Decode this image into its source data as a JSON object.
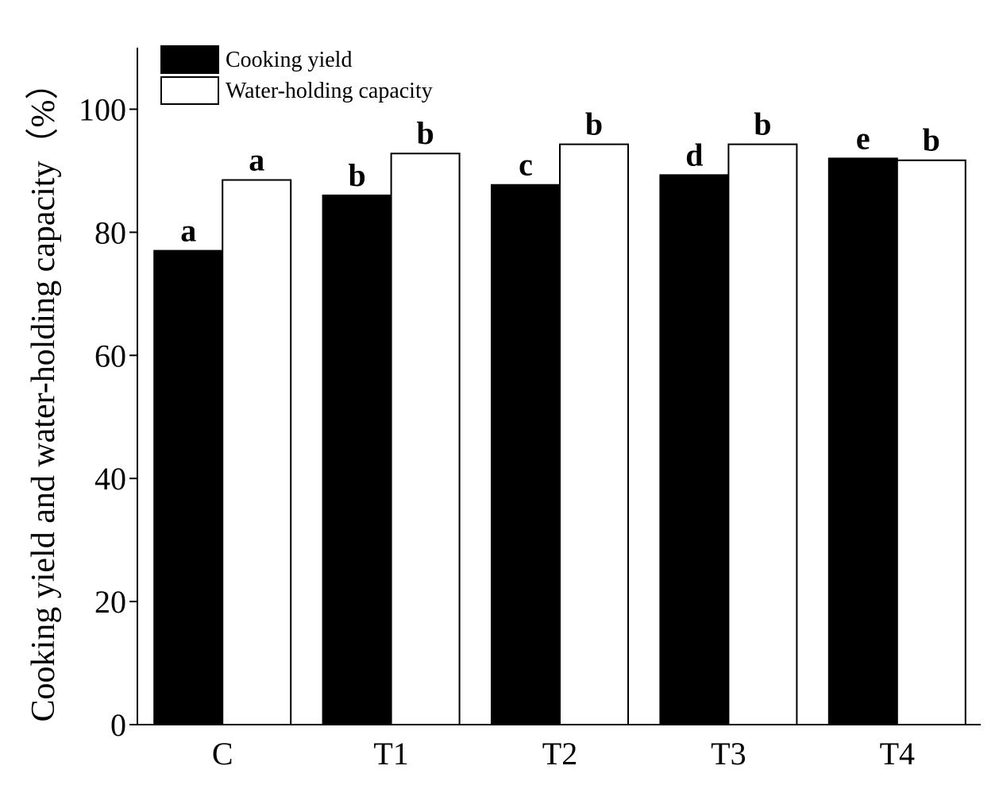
{
  "chart_data": {
    "type": "bar",
    "categories": [
      "C",
      "T1",
      "T2",
      "T3",
      "T4"
    ],
    "series": [
      {
        "name": "Cooking yield",
        "color": "#000000",
        "values": [
          77.0,
          86.0,
          87.7,
          89.3,
          92.0
        ],
        "sig_letters": [
          "a",
          "b",
          "c",
          "d",
          "e"
        ]
      },
      {
        "name": "Water-holding capacity",
        "color": "#ffffff",
        "values": [
          88.5,
          92.8,
          94.3,
          94.3,
          91.7
        ],
        "sig_letters": [
          "a",
          "b",
          "b",
          "b",
          "b"
        ]
      }
    ],
    "ylabel": "Cooking yield and water-holding capacity（%）",
    "xlabel": "",
    "ylim": [
      0,
      110
    ],
    "yticks": [
      0,
      20,
      40,
      60,
      80,
      100
    ],
    "grid": false,
    "legend_position": "top-left"
  }
}
